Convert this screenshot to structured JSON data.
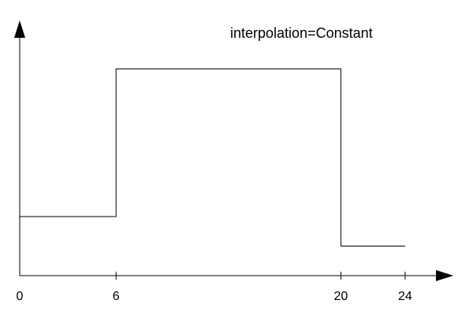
{
  "chart_data": {
    "type": "line",
    "title": "interpolation=Constant",
    "interpolation": "step",
    "xlabel": "",
    "ylabel": "",
    "xlim": [
      0,
      27
    ],
    "ylim": [
      0,
      8
    ],
    "x_ticks": [
      0,
      6,
      20,
      24
    ],
    "x_tick_labels": [
      "0",
      "6",
      "20",
      "24"
    ],
    "y_ticks": [],
    "grid": false,
    "legend": "none",
    "series": [
      {
        "points": [
          {
            "x": 0,
            "y": 2
          },
          {
            "x": 6,
            "y": 7
          },
          {
            "x": 20,
            "y": 1
          },
          {
            "x": 24,
            "y": 1
          }
        ]
      }
    ],
    "line_color": "#000000",
    "axis_color": "#000000"
  }
}
